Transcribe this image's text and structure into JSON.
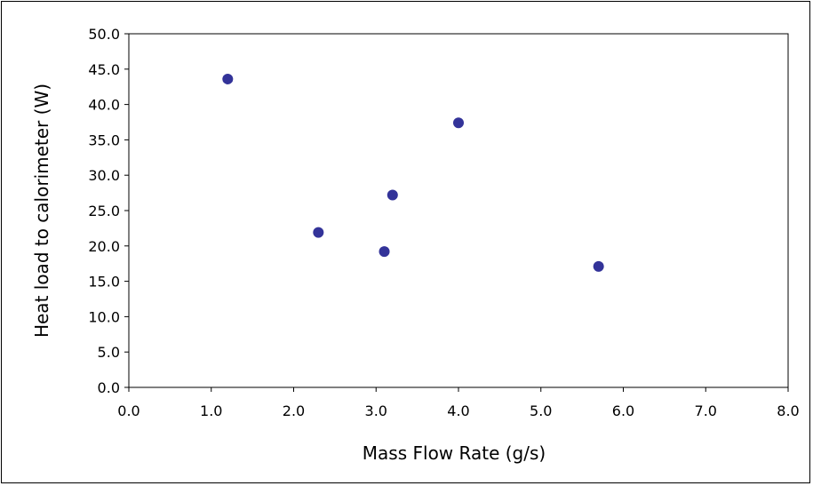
{
  "chart_data": {
    "type": "scatter",
    "xlabel": "Mass Flow Rate (g/s)",
    "ylabel": "Heat load to calorimeter (W)",
    "xlim": [
      0.0,
      8.0
    ],
    "ylim": [
      0.0,
      50.0
    ],
    "x_ticks": [
      "0.0",
      "1.0",
      "2.0",
      "3.0",
      "4.0",
      "5.0",
      "6.0",
      "7.0",
      "8.0"
    ],
    "y_ticks": [
      "0.0",
      "5.0",
      "10.0",
      "15.0",
      "20.0",
      "25.0",
      "30.0",
      "35.0",
      "40.0",
      "45.0",
      "50.0"
    ],
    "series": [
      {
        "color": "#333399",
        "x": [
          1.2,
          2.3,
          3.1,
          3.2,
          4.0,
          5.7
        ],
        "y": [
          43.6,
          21.9,
          19.2,
          27.2,
          37.4,
          17.1
        ]
      }
    ],
    "grid": false,
    "legend": "none"
  }
}
